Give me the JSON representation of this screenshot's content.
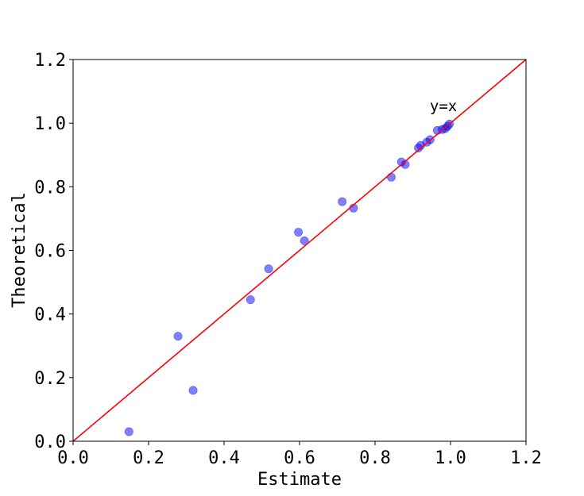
{
  "chart_data": {
    "type": "scatter",
    "title": "",
    "xlabel": "Estimate",
    "ylabel": "Theoretical",
    "xlim": [
      0.0,
      1.2
    ],
    "ylim": [
      0.0,
      1.2
    ],
    "xticks": [
      "0.0",
      "0.2",
      "0.4",
      "0.6",
      "0.8",
      "1.0",
      "1.2"
    ],
    "yticks": [
      "0.0",
      "0.2",
      "0.4",
      "0.6",
      "0.8",
      "1.0",
      "1.2"
    ],
    "grid": false,
    "legend": "none",
    "series": [
      {
        "color": "#0000ff",
        "alpha": 0.5,
        "points": [
          [
            0.148,
            0.03
          ],
          [
            0.278,
            0.33
          ],
          [
            0.318,
            0.16
          ],
          [
            0.47,
            0.445
          ],
          [
            0.518,
            0.542
          ],
          [
            0.597,
            0.657
          ],
          [
            0.613,
            0.63
          ],
          [
            0.713,
            0.753
          ],
          [
            0.743,
            0.733
          ],
          [
            0.843,
            0.83
          ],
          [
            0.87,
            0.878
          ],
          [
            0.88,
            0.87
          ],
          [
            0.915,
            0.922
          ],
          [
            0.921,
            0.93
          ],
          [
            0.937,
            0.94
          ],
          [
            0.946,
            0.948
          ],
          [
            0.965,
            0.977
          ],
          [
            0.978,
            0.98
          ],
          [
            0.986,
            0.983
          ],
          [
            0.992,
            0.99
          ],
          [
            0.997,
            0.997
          ]
        ]
      }
    ],
    "reference_line": {
      "color": "#ff0000",
      "from": [
        0.0,
        0.0
      ],
      "to": [
        1.2,
        1.2
      ]
    },
    "annotations": [
      {
        "text": "y=x",
        "x": 0.945,
        "y": 1.055
      }
    ]
  }
}
